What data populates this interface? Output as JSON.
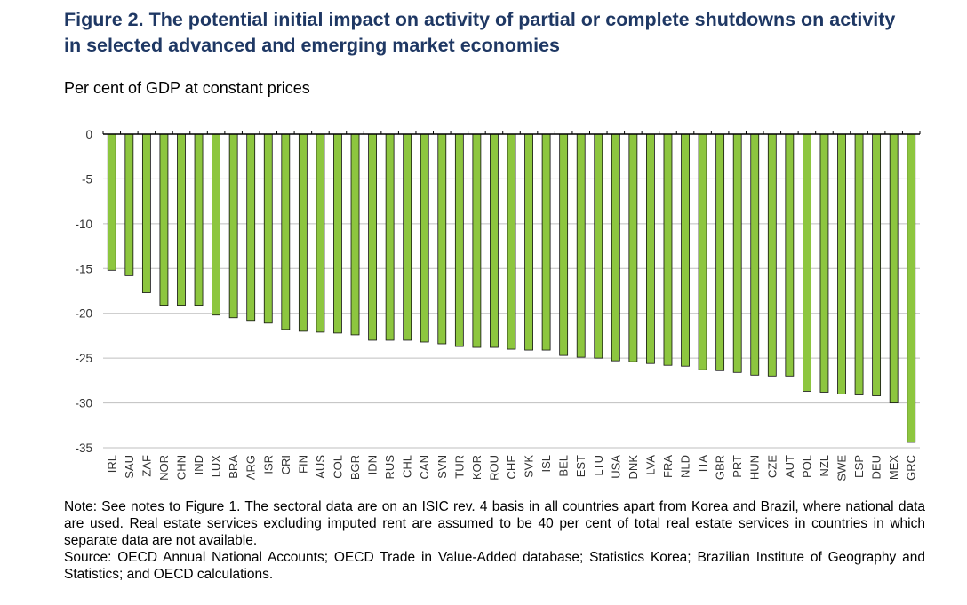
{
  "header": {
    "title_line1": "Figure 2. The potential initial impact on activity of partial or complete shutdowns on activity",
    "title_line2": "in selected advanced and emerging market economies",
    "subtitle": "Per cent of GDP at constant prices"
  },
  "colors": {
    "bar_fill": "#8dc63f",
    "bar_stroke": "#111111",
    "grid": "#bfbfbf",
    "axis": "#000000",
    "title": "#1f3864"
  },
  "chart_data": {
    "type": "bar",
    "categories": [
      "IRL",
      "SAU",
      "ZAF",
      "NOR",
      "CHN",
      "IND",
      "LUX",
      "BRA",
      "ARG",
      "ISR",
      "CRI",
      "FIN",
      "AUS",
      "COL",
      "BGR",
      "IDN",
      "RUS",
      "CHL",
      "CAN",
      "SVN",
      "TUR",
      "KOR",
      "ROU",
      "CHE",
      "SVK",
      "ISL",
      "BEL",
      "EST",
      "LTU",
      "USA",
      "DNK",
      "LVA",
      "FRA",
      "NLD",
      "ITA",
      "GBR",
      "PRT",
      "HUN",
      "CZE",
      "AUT",
      "POL",
      "NZL",
      "SWE",
      "ESP",
      "DEU",
      "MEX",
      "GRC"
    ],
    "values": [
      -15.2,
      -15.8,
      -17.7,
      -19.1,
      -19.1,
      -19.1,
      -20.2,
      -20.5,
      -20.8,
      -21.1,
      -21.8,
      -22.0,
      -22.1,
      -22.2,
      -22.4,
      -23.0,
      -23.0,
      -23.0,
      -23.2,
      -23.4,
      -23.7,
      -23.8,
      -23.8,
      -24.0,
      -24.1,
      -24.1,
      -24.7,
      -24.9,
      -25.0,
      -25.3,
      -25.4,
      -25.6,
      -25.8,
      -25.9,
      -26.3,
      -26.4,
      -26.6,
      -26.9,
      -27.0,
      -27.0,
      -28.7,
      -28.8,
      -29.0,
      -29.1,
      -29.2,
      -30.0,
      -34.4
    ],
    "ylim": [
      -35,
      0
    ],
    "yticks": [
      0,
      -5,
      -10,
      -15,
      -20,
      -25,
      -30,
      -35
    ],
    "grid": true,
    "xlabel": "",
    "ylabel": ""
  },
  "notes": {
    "note": "Note: See notes to Figure 1. The sectoral data are on an ISIC rev. 4 basis in all countries apart from Korea and Brazil, where national data are used. Real estate services excluding imputed rent are assumed to be 40 per cent of total real estate services in countries in which separate data are not available.",
    "source": "Source: OECD Annual National Accounts; OECD Trade in Value-Added database; Statistics Korea; Brazilian Institute of Geography and Statistics; and OECD calculations."
  }
}
